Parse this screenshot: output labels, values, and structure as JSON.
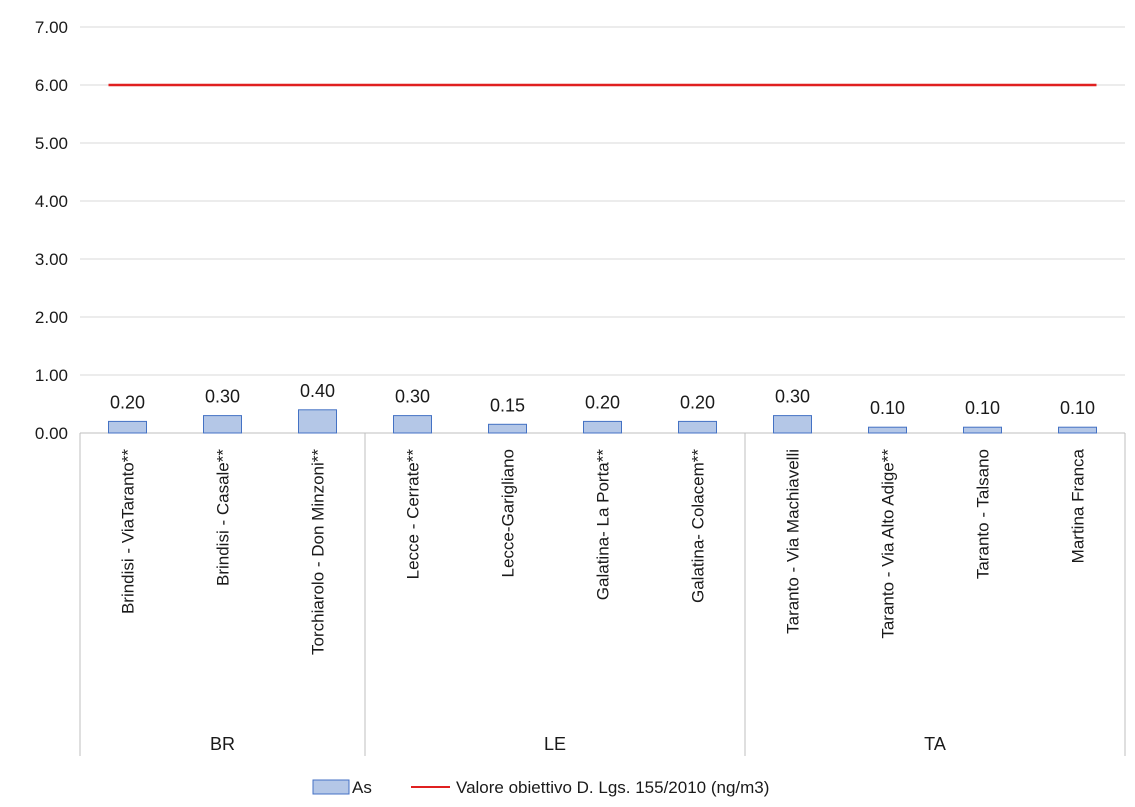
{
  "chart_data": {
    "type": "bar",
    "title": "",
    "xlabel": "",
    "ylabel": "",
    "ylim": [
      0,
      7
    ],
    "yticks": [
      "0.00",
      "1.00",
      "2.00",
      "3.00",
      "4.00",
      "5.00",
      "6.00",
      "7.00"
    ],
    "ytick_values": [
      0,
      1,
      2,
      3,
      4,
      5,
      6,
      7
    ],
    "grid": true,
    "legend_position": "bottom",
    "categories": [
      "Brindisi - ViaTaranto**",
      "Brindisi - Casale**",
      "Torchiarolo - Don Minzoni**",
      "Lecce - Cerrate**",
      "Lecce-Garigliano",
      "Galatina- La Porta**",
      "Galatina- Colacem**",
      "Taranto - Via Machiavelli",
      "Taranto - Via Alto Adige**",
      "Taranto - Talsano",
      "Martina Franca"
    ],
    "groups": [
      {
        "label": "BR",
        "count": 3
      },
      {
        "label": "LE",
        "count": 4
      },
      {
        "label": "TA",
        "count": 4
      }
    ],
    "series": [
      {
        "name": "As",
        "type": "bar",
        "color": "#b4c7e7",
        "values": [
          0.2,
          0.3,
          0.4,
          0.3,
          0.15,
          0.2,
          0.2,
          0.3,
          0.1,
          0.1,
          0.1
        ],
        "labels": [
          "0.20",
          "0.30",
          "0.40",
          "0.30",
          "0.15",
          "0.20",
          "0.20",
          "0.30",
          "0.10",
          "0.10",
          "0.10"
        ]
      },
      {
        "name": "Valore obiettivo D. Lgs. 155/2010 (ng/m3)",
        "type": "line",
        "color": "#e02020",
        "value": 6
      }
    ]
  }
}
